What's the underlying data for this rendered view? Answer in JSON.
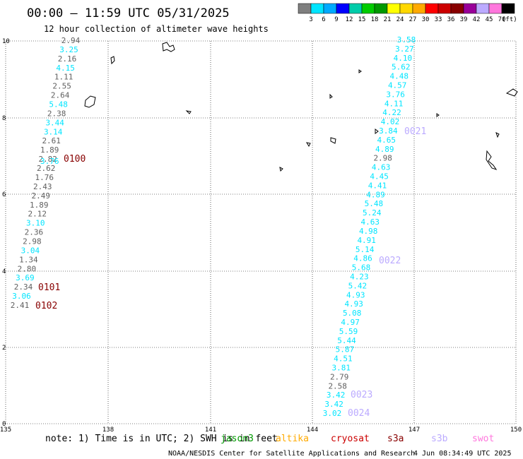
{
  "title": "00:00 – 11:59 UTC 05/31/2025",
  "subtitle": "12 hour collection of altimeter wave heights",
  "legend": {
    "unit": "(ft)",
    "labels": [
      "3",
      "6",
      "9",
      "12",
      "15",
      "18",
      "21",
      "24",
      "27",
      "30",
      "33",
      "36",
      "39",
      "42",
      "45",
      "70"
    ],
    "colors": [
      "#7f7f7f",
      "#00e5ff",
      "#00aaff",
      "#0000ff",
      "#00ccaa",
      "#00cc00",
      "#009900",
      "#ffff00",
      "#ffd800",
      "#ffaa00",
      "#ff0000",
      "#cc0000",
      "#880000",
      "#990099",
      "#bbaaff",
      "#ff77dd",
      "#000000"
    ]
  },
  "axes": {
    "x_ticks": [
      "135",
      "138",
      "141",
      "144",
      "147",
      "150"
    ],
    "y_ticks": [
      "0",
      "2",
      "4",
      "6",
      "8",
      "10"
    ]
  },
  "sample_colors": {
    "cyan": "#00e5ff",
    "gray": "#606060"
  },
  "left_track": [
    {
      "v": "2.94",
      "c": "gray"
    },
    {
      "v": "3.25",
      "c": "cyan"
    },
    {
      "v": "2.16",
      "c": "gray"
    },
    {
      "v": "4.15",
      "c": "cyan"
    },
    {
      "v": "1.11",
      "c": "gray"
    },
    {
      "v": "2.55",
      "c": "gray"
    },
    {
      "v": "2.64",
      "c": "gray"
    },
    {
      "v": "5.48",
      "c": "cyan"
    },
    {
      "v": "2.38",
      "c": "gray"
    },
    {
      "v": "3.44",
      "c": "cyan"
    },
    {
      "v": "3.14",
      "c": "cyan"
    },
    {
      "v": "2.61",
      "c": "gray"
    },
    {
      "v": "1.89",
      "c": "gray"
    },
    {
      "v": "2.82",
      "c": "gray"
    },
    {
      "v": "2.62",
      "c": "gray"
    },
    {
      "v": "1.76",
      "c": "gray"
    },
    {
      "v": "2.43",
      "c": "gray"
    },
    {
      "v": "2.49",
      "c": "gray"
    },
    {
      "v": "1.89",
      "c": "gray"
    },
    {
      "v": "2.12",
      "c": "gray"
    },
    {
      "v": "3.10",
      "c": "cyan"
    },
    {
      "v": "2.36",
      "c": "gray"
    },
    {
      "v": "2.98",
      "c": "gray"
    },
    {
      "v": "3.04",
      "c": "cyan"
    },
    {
      "v": "1.34",
      "c": "gray"
    },
    {
      "v": "2.80",
      "c": "gray"
    },
    {
      "v": "3.69",
      "c": "cyan"
    },
    {
      "v": "2.34",
      "c": "gray"
    },
    {
      "v": "3.06",
      "c": "cyan"
    },
    {
      "v": "2.41",
      "c": "gray"
    }
  ],
  "left_overlap": {
    "v": "3.76",
    "c": "cyan"
  },
  "right_track": [
    {
      "v": "3.58",
      "c": "cyan"
    },
    {
      "v": "3.27",
      "c": "cyan"
    },
    {
      "v": "4.10",
      "c": "cyan"
    },
    {
      "v": "5.62",
      "c": "cyan"
    },
    {
      "v": "4.48",
      "c": "cyan"
    },
    {
      "v": "4.57",
      "c": "cyan"
    },
    {
      "v": "3.76",
      "c": "cyan"
    },
    {
      "v": "4.11",
      "c": "cyan"
    },
    {
      "v": "4.22",
      "c": "cyan"
    },
    {
      "v": "4.02",
      "c": "cyan"
    },
    {
      "v": "3.84",
      "c": "cyan"
    },
    {
      "v": "4.65",
      "c": "cyan"
    },
    {
      "v": "4.89",
      "c": "cyan"
    },
    {
      "v": "2.98",
      "c": "gray"
    },
    {
      "v": "4.63",
      "c": "cyan"
    },
    {
      "v": "4.45",
      "c": "cyan"
    },
    {
      "v": "4.41",
      "c": "cyan"
    },
    {
      "v": "4.89",
      "c": "cyan"
    },
    {
      "v": "5.48",
      "c": "cyan"
    },
    {
      "v": "5.24",
      "c": "cyan"
    },
    {
      "v": "4.63",
      "c": "cyan"
    },
    {
      "v": "4.98",
      "c": "cyan"
    },
    {
      "v": "4.91",
      "c": "cyan"
    },
    {
      "v": "5.14",
      "c": "cyan"
    },
    {
      "v": "4.86",
      "c": "cyan"
    },
    {
      "v": "5.68",
      "c": "cyan"
    },
    {
      "v": "4.23",
      "c": "cyan"
    },
    {
      "v": "5.42",
      "c": "cyan"
    },
    {
      "v": "4.93",
      "c": "cyan"
    },
    {
      "v": "4.93",
      "c": "cyan"
    },
    {
      "v": "5.08",
      "c": "cyan"
    },
    {
      "v": "4.97",
      "c": "cyan"
    },
    {
      "v": "5.59",
      "c": "cyan"
    },
    {
      "v": "5.44",
      "c": "cyan"
    },
    {
      "v": "5.87",
      "c": "cyan"
    },
    {
      "v": "4.51",
      "c": "cyan"
    },
    {
      "v": "3.81",
      "c": "cyan"
    },
    {
      "v": "2.79",
      "c": "gray"
    },
    {
      "v": "2.58",
      "c": "gray"
    },
    {
      "v": "3.42",
      "c": "cyan"
    },
    {
      "v": "3.42",
      "c": "cyan"
    },
    {
      "v": "3.02",
      "c": "cyan"
    }
  ],
  "track_labels": [
    {
      "text": "0100",
      "color": "#880000"
    },
    {
      "text": "0101",
      "color": "#880000"
    },
    {
      "text": "0102",
      "color": "#880000"
    },
    {
      "text": "0021",
      "color": "#bbaaff"
    },
    {
      "text": "0022",
      "color": "#bbaaff"
    },
    {
      "text": "0023",
      "color": "#bbaaff"
    },
    {
      "text": "0024",
      "color": "#bbaaff"
    }
  ],
  "note": "note: 1) Time is in UTC; 2) SWH is in feet",
  "satellites": [
    {
      "name": "jason3",
      "color": "#009900"
    },
    {
      "name": "altika",
      "color": "#ffaa00"
    },
    {
      "name": "cryosat",
      "color": "#cc0000"
    },
    {
      "name": "s3a",
      "color": "#880000"
    },
    {
      "name": "s3b",
      "color": "#bbaaff"
    },
    {
      "name": "swot",
      "color": "#ff77dd"
    }
  ],
  "footer_left": "NOAA/NESDIS Center for Satellite Applications and Research",
  "footer_right": "4 Jun 08:34:49 UTC 2025"
}
